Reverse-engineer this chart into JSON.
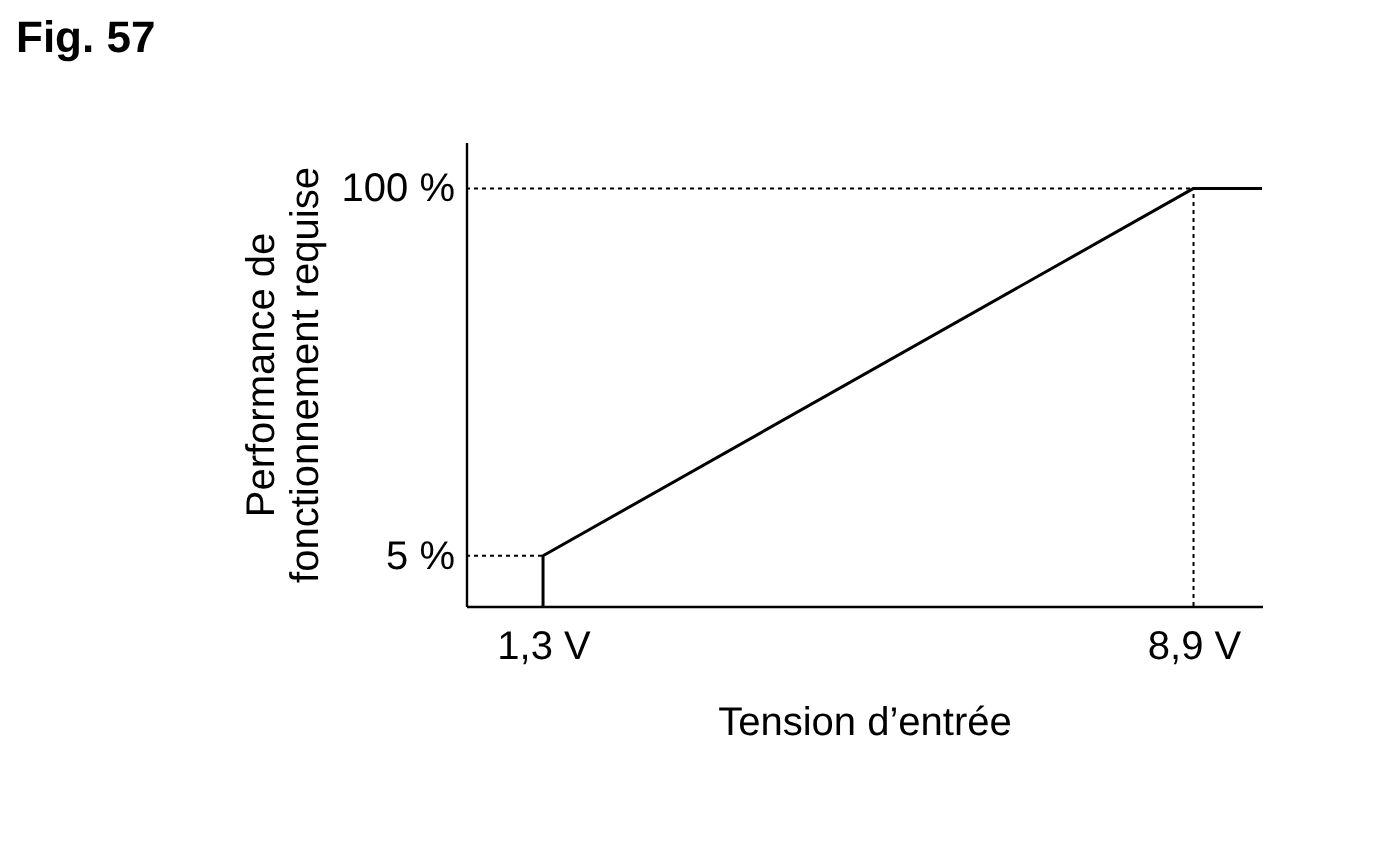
{
  "chart_data": {
    "type": "line",
    "title": "Fig. 57",
    "xlabel": "Tension d’entrée",
    "ylabel": "Performance de\nfonctionnement requise",
    "x": [
      1.3,
      1.3,
      8.9,
      9.7
    ],
    "series": [
      {
        "color": "#000000",
        "values": [
          -8,
          5,
          100,
          100
        ]
      }
    ],
    "xlim": [
      0.4,
      9.7
    ],
    "ylim": [
      -8,
      112
    ],
    "xticks": [
      {
        "value": 1.3,
        "label": "1,3 V"
      },
      {
        "value": 8.9,
        "label": "8,9 V"
      }
    ],
    "yticks": [
      {
        "value": 5,
        "label": "5 %"
      },
      {
        "value": 100,
        "label": "100 %"
      }
    ],
    "ref_lines": [
      {
        "axis": "y",
        "value": 5,
        "color": "#000000",
        "line_style": "dotted"
      },
      {
        "axis": "y",
        "value": 100,
        "color": "#000000",
        "line_style": "dotted"
      },
      {
        "axis": "x",
        "value": 8.9,
        "color": "#000000",
        "line_style": "dotted"
      }
    ],
    "grid": false,
    "marker": "none",
    "line_style": "solid"
  }
}
